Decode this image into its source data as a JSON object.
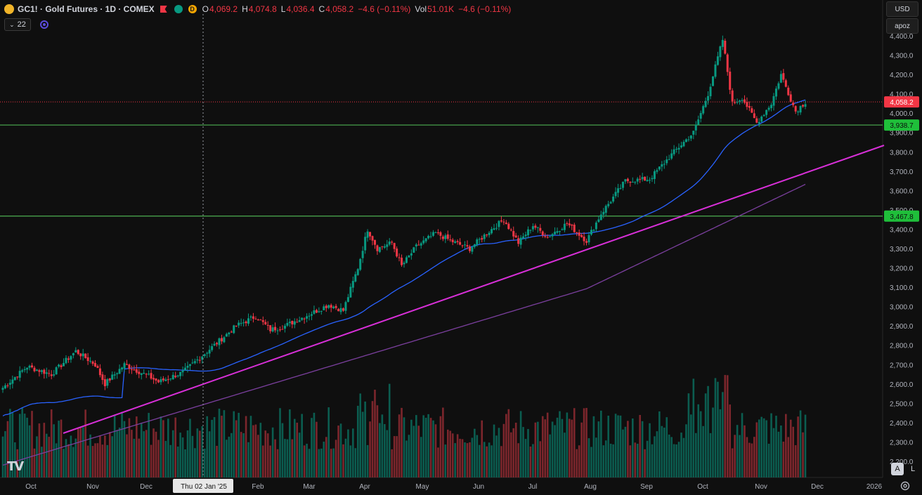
{
  "header": {
    "symbol": "GC1! · Gold Futures · 1D · COMEX",
    "open_label": "O",
    "open": "4,069.2",
    "high_label": "H",
    "high": "4,074.8",
    "low_label": "L",
    "low": "4,036.4",
    "close_label": "C",
    "close": "4,058.2",
    "change": "−4.6 (−0.11%)",
    "vol_label": "Vol",
    "vol": "51.01K",
    "vol_change": "−4.6 (−0.11%)",
    "session_badge": "D",
    "indicator_count": "22"
  },
  "toolbar": {
    "currency": "USD",
    "scale_label": "apoz",
    "auto_label": "A",
    "log_label": "L"
  },
  "colors": {
    "up": "#089981",
    "down": "#f23645",
    "ma50": "#2962ff",
    "ma200": "#7b3f9e",
    "trendline": "#d82fd8",
    "level": "#4caf50",
    "last_price": "#f23645"
  },
  "chart_data": {
    "type": "candlestick",
    "y_ticks": [
      "4,400.0",
      "4,300.0",
      "4,200.0",
      "4,100.0",
      "4,000.0",
      "3,900.0",
      "3,800.0",
      "3,700.0",
      "3,600.0",
      "3,500.0",
      "3,400.0",
      "3,300.0",
      "3,200.0",
      "3,100.0",
      "3,000.0",
      "2,900.0",
      "2,800.0",
      "2,700.0",
      "2,600.0",
      "2,500.0",
      "2,400.0",
      "2,300.0",
      "2,200.0"
    ],
    "ylim": [
      2200,
      4420
    ],
    "x_ticks": [
      "Oct",
      "Nov",
      "Dec",
      "Thu 02 Jan '25",
      "Feb",
      "Mar",
      "Apr",
      "May",
      "Jun",
      "Jul",
      "Aug",
      "Sep",
      "Oct",
      "Nov",
      "Dec",
      "2026"
    ],
    "crosshair_label": "Thu 02 Jan '25",
    "last_price": 4058.2,
    "last_price_label": "4,058.2",
    "levels": [
      {
        "value": 3938.7,
        "label": "3,938.7"
      },
      {
        "value": 3467.8,
        "label": "3,467.8"
      }
    ],
    "close_anchors": [
      [
        0,
        2580
      ],
      [
        10,
        2690
      ],
      [
        20,
        2650
      ],
      [
        30,
        2770
      ],
      [
        38,
        2700
      ],
      [
        42,
        2600
      ],
      [
        50,
        2700
      ],
      [
        60,
        2640
      ],
      [
        64,
        2610
      ],
      [
        74,
        2660
      ],
      [
        86,
        2790
      ],
      [
        96,
        2900
      ],
      [
        104,
        2950
      ],
      [
        110,
        2880
      ],
      [
        116,
        2900
      ],
      [
        126,
        2960
      ],
      [
        134,
        3010
      ],
      [
        140,
        2980
      ],
      [
        146,
        3200
      ],
      [
        150,
        3400
      ],
      [
        154,
        3300
      ],
      [
        160,
        3330
      ],
      [
        164,
        3210
      ],
      [
        170,
        3310
      ],
      [
        178,
        3380
      ],
      [
        186,
        3330
      ],
      [
        192,
        3300
      ],
      [
        200,
        3390
      ],
      [
        206,
        3450
      ],
      [
        212,
        3330
      ],
      [
        218,
        3420
      ],
      [
        224,
        3360
      ],
      [
        232,
        3430
      ],
      [
        240,
        3340
      ],
      [
        246,
        3480
      ],
      [
        256,
        3650
      ],
      [
        266,
        3660
      ],
      [
        276,
        3800
      ],
      [
        284,
        3900
      ],
      [
        290,
        4100
      ],
      [
        296,
        4380
      ],
      [
        300,
        4050
      ],
      [
        304,
        4080
      ],
      [
        310,
        3950
      ],
      [
        316,
        4050
      ],
      [
        320,
        4200
      ],
      [
        326,
        4010
      ],
      [
        330,
        4058.2
      ]
    ]
  }
}
